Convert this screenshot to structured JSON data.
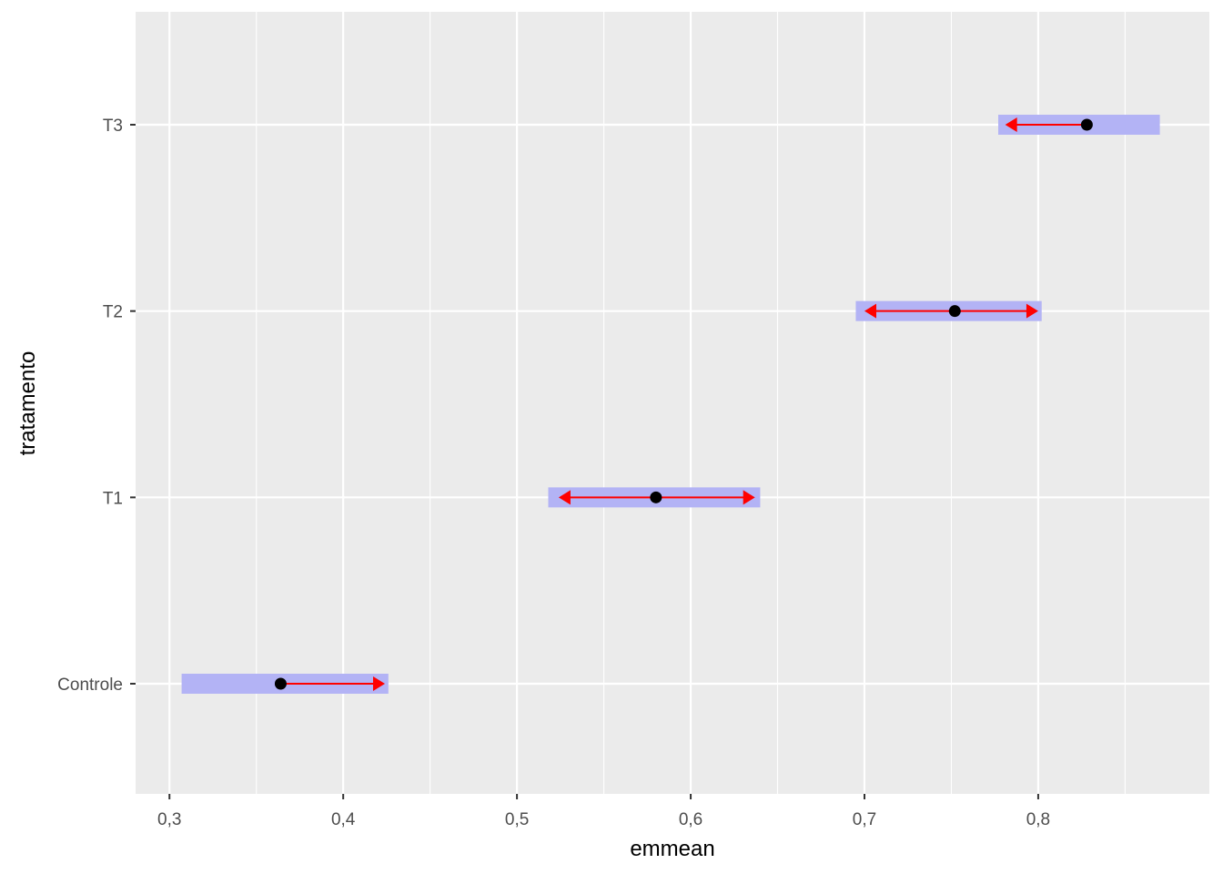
{
  "chart_data": {
    "type": "interval",
    "xlabel": "emmean",
    "ylabel": "tratamento",
    "xlim": [
      0.2805,
      0.8985
    ],
    "x_ticks": [
      {
        "value": 0.3,
        "label": "0,3"
      },
      {
        "value": 0.4,
        "label": "0,4"
      },
      {
        "value": 0.5,
        "label": "0,5"
      },
      {
        "value": 0.6,
        "label": "0,6"
      },
      {
        "value": 0.7,
        "label": "0,7"
      },
      {
        "value": 0.8,
        "label": "0,8"
      }
    ],
    "categories": [
      "Controle",
      "T1",
      "T2",
      "T3"
    ],
    "series": [
      {
        "points": [
          {
            "category": "Controle",
            "emmean": 0.364,
            "lower_CL": 0.307,
            "upper_CL": 0.426,
            "arrow_left": null,
            "arrow_right": 0.424
          },
          {
            "category": "T1",
            "emmean": 0.58,
            "lower_CL": 0.518,
            "upper_CL": 0.64,
            "arrow_left": 0.524,
            "arrow_right": 0.637
          },
          {
            "category": "T2",
            "emmean": 0.752,
            "lower_CL": 0.695,
            "upper_CL": 0.802,
            "arrow_left": 0.7,
            "arrow_right": 0.8
          },
          {
            "category": "T3",
            "emmean": 0.828,
            "lower_CL": 0.777,
            "upper_CL": 0.87,
            "arrow_left": 0.781,
            "arrow_right": null
          }
        ]
      }
    ],
    "grid": true,
    "colors": {
      "panel": "#ebebeb",
      "grid": "#ffffff",
      "ci_bar": "#b3b3f5",
      "arrow": "#ff0000",
      "point": "#000000"
    }
  }
}
